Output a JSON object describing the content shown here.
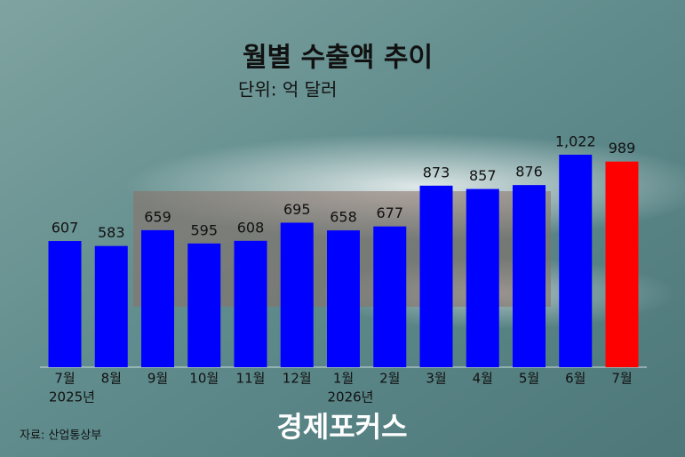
{
  "chart_data": {
    "type": "bar",
    "title": "월별 수출액 추이",
    "subtitle": "단위: 억 달러",
    "categories": [
      "7월",
      "8월",
      "9월",
      "10월",
      "11월",
      "12월",
      "1월",
      "2월",
      "3월",
      "4월",
      "5월",
      "6월",
      "7월"
    ],
    "category_sublabels": [
      "2025년",
      null,
      null,
      null,
      null,
      null,
      "2026년",
      null,
      null,
      null,
      null,
      null,
      null
    ],
    "values": [
      607,
      583,
      659,
      595,
      608,
      695,
      658,
      677,
      873,
      857,
      876,
      1022,
      989
    ],
    "value_labels": [
      "607",
      "583",
      "659",
      "595",
      "608",
      "695",
      "658",
      "677",
      "873",
      "857",
      "876",
      "1,022",
      "989"
    ],
    "colors": [
      "#0000ff",
      "#0000ff",
      "#0000ff",
      "#0000ff",
      "#0000ff",
      "#0000ff",
      "#0000ff",
      "#0000ff",
      "#0000ff",
      "#0000ff",
      "#0000ff",
      "#0000ff",
      "#ff0000"
    ],
    "source": "자료: 산업통상부",
    "logo": "경제포커스"
  }
}
